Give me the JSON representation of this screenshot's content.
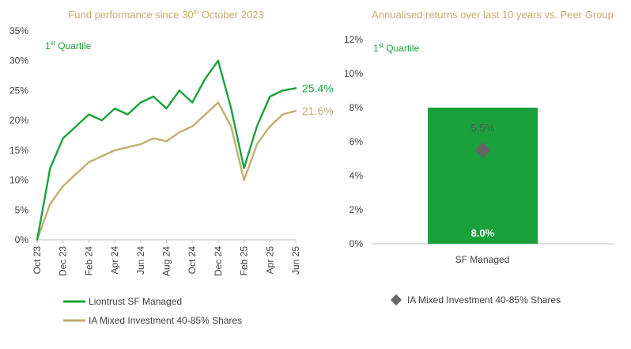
{
  "colors": {
    "fund": "#1aa13b",
    "peer": "#c2ad72",
    "title": "#c8a96a",
    "bar": "#1aa13b",
    "marker": "#666666",
    "axis": "#404040"
  },
  "chart_data": [
    {
      "type": "line",
      "title": {
        "prefix": "Fund performance since 30",
        "sup": "th",
        "suffix": " October 2023"
      },
      "quartile": {
        "prefix": "1",
        "sup": "st",
        "suffix": " Quartile"
      },
      "x": [
        "Oct 23",
        "Nov 23",
        "Dec 23",
        "Jan 24",
        "Feb 24",
        "Mar 24",
        "Apr 24",
        "May 24",
        "Jun 24",
        "Jul 24",
        "Aug 24",
        "Sep 24",
        "Oct 24",
        "Nov 24",
        "Dec 24",
        "Jan 25",
        "Feb 25",
        "Mar 25",
        "Apr 25",
        "May 25",
        "Jun 25"
      ],
      "x_ticks": [
        "Oct 23",
        "Dec 23",
        "Feb 24",
        "Apr 24",
        "Jun 24",
        "Aug 24",
        "Oct 24",
        "Dec 24",
        "Feb 25",
        "Apr 25",
        "Jun 25"
      ],
      "yticks": [
        "0%",
        "5%",
        "10%",
        "15%",
        "20%",
        "25%",
        "30%",
        "35%"
      ],
      "ylim": [
        0,
        35
      ],
      "series": [
        {
          "name": "Liontrust SF Managed",
          "end_label": "25.4%",
          "values": [
            0,
            12,
            17,
            19,
            21,
            20,
            22,
            21,
            23,
            24,
            22,
            25,
            23,
            27,
            30,
            22,
            12,
            19,
            24,
            25,
            25.4
          ]
        },
        {
          "name": "IA Mixed Investment 40-85% Shares",
          "end_label": "21.6%",
          "values": [
            0,
            6,
            9,
            11,
            13,
            14,
            15,
            15.5,
            16,
            17,
            16.5,
            18,
            19,
            21,
            23,
            19,
            10,
            16,
            19,
            21,
            21.6
          ]
        }
      ]
    },
    {
      "type": "bar",
      "title": "Annualised returns over last 10 years vs. Peer Group",
      "quartile": {
        "prefix": "1",
        "sup": "st",
        "suffix": " Quartile"
      },
      "categories": [
        "SF Managed"
      ],
      "values": [
        8.0
      ],
      "value_labels": [
        "8.0%"
      ],
      "peer": {
        "name": "IA Mixed Investment 40-85% Shares",
        "value": 5.5,
        "label": "5.5%"
      },
      "yticks": [
        "0%",
        "2%",
        "4%",
        "6%",
        "8%",
        "10%",
        "12%"
      ],
      "ylim": [
        0,
        12
      ]
    }
  ]
}
